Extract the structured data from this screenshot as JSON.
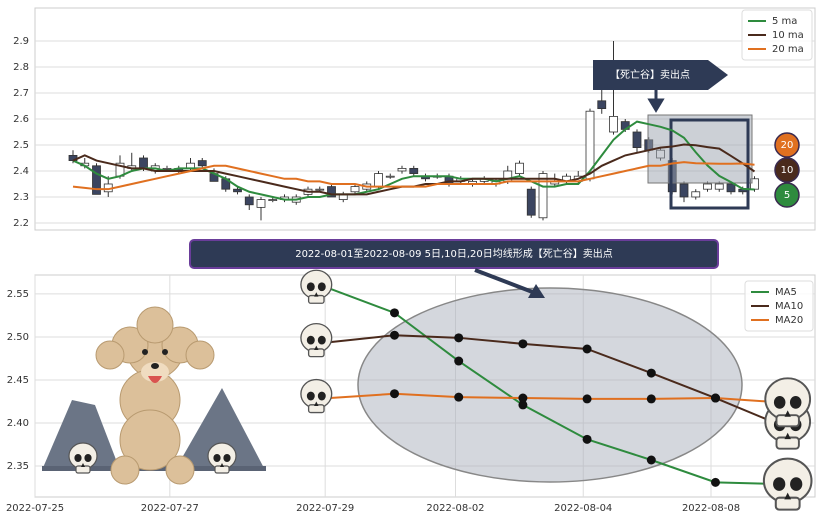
{
  "chart_data": [
    {
      "type": "candlestick",
      "ohlc": [
        [
          2.46,
          2.48,
          2.43,
          2.44
        ],
        [
          2.42,
          2.45,
          2.41,
          2.43
        ],
        [
          2.42,
          2.43,
          2.31,
          2.31
        ],
        [
          2.32,
          2.38,
          2.3,
          2.35
        ],
        [
          2.38,
          2.46,
          2.37,
          2.43
        ],
        [
          2.41,
          2.47,
          2.4,
          2.42
        ],
        [
          2.45,
          2.46,
          2.4,
          2.41
        ],
        [
          2.4,
          2.43,
          2.39,
          2.42
        ],
        [
          2.41,
          2.42,
          2.4,
          2.41
        ],
        [
          2.41,
          2.42,
          2.39,
          2.4
        ],
        [
          2.41,
          2.45,
          2.4,
          2.43
        ],
        [
          2.44,
          2.45,
          2.41,
          2.42
        ],
        [
          2.39,
          2.41,
          2.36,
          2.36
        ],
        [
          2.37,
          2.38,
          2.32,
          2.33
        ],
        [
          2.33,
          2.34,
          2.31,
          2.32
        ],
        [
          2.3,
          2.31,
          2.25,
          2.27
        ],
        [
          2.26,
          2.3,
          2.21,
          2.29
        ],
        [
          2.29,
          2.3,
          2.28,
          2.29
        ],
        [
          2.29,
          2.31,
          2.28,
          2.3
        ],
        [
          2.28,
          2.31,
          2.27,
          2.3
        ],
        [
          2.31,
          2.34,
          2.3,
          2.33
        ],
        [
          2.33,
          2.34,
          2.32,
          2.33
        ],
        [
          2.34,
          2.35,
          2.3,
          2.3
        ],
        [
          2.29,
          2.32,
          2.28,
          2.31
        ],
        [
          2.32,
          2.35,
          2.31,
          2.34
        ],
        [
          2.33,
          2.36,
          2.32,
          2.35
        ],
        [
          2.34,
          2.4,
          2.33,
          2.39
        ],
        [
          2.38,
          2.39,
          2.37,
          2.38
        ],
        [
          2.4,
          2.42,
          2.39,
          2.41
        ],
        [
          2.41,
          2.42,
          2.38,
          2.39
        ],
        [
          2.38,
          2.39,
          2.36,
          2.37
        ],
        [
          2.38,
          2.39,
          2.37,
          2.38
        ],
        [
          2.38,
          2.39,
          2.34,
          2.35
        ],
        [
          2.36,
          2.38,
          2.35,
          2.37
        ],
        [
          2.35,
          2.37,
          2.34,
          2.36
        ],
        [
          2.36,
          2.38,
          2.35,
          2.37
        ],
        [
          2.35,
          2.37,
          2.34,
          2.36
        ],
        [
          2.36,
          2.42,
          2.35,
          2.4
        ],
        [
          2.39,
          2.44,
          2.38,
          2.43
        ],
        [
          2.33,
          2.34,
          2.22,
          2.23
        ],
        [
          2.22,
          2.4,
          2.21,
          2.39
        ],
        [
          2.35,
          2.39,
          2.34,
          2.36
        ],
        [
          2.36,
          2.39,
          2.35,
          2.38
        ],
        [
          2.36,
          2.4,
          2.35,
          2.38
        ],
        [
          2.37,
          2.64,
          2.36,
          2.63
        ],
        [
          2.67,
          2.82,
          2.62,
          2.64
        ],
        [
          2.55,
          2.9,
          2.54,
          2.61
        ],
        [
          2.59,
          2.6,
          2.55,
          2.56
        ],
        [
          2.55,
          2.56,
          2.47,
          2.49
        ],
        [
          2.52,
          2.53,
          2.47,
          2.48
        ],
        [
          2.45,
          2.49,
          2.44,
          2.48
        ],
        [
          2.44,
          2.45,
          2.31,
          2.32
        ],
        [
          2.35,
          2.36,
          2.28,
          2.3
        ],
        [
          2.3,
          2.33,
          2.29,
          2.32
        ],
        [
          2.33,
          2.36,
          2.32,
          2.35
        ],
        [
          2.33,
          2.36,
          2.32,
          2.35
        ],
        [
          2.35,
          2.36,
          2.31,
          2.32
        ],
        [
          2.33,
          2.34,
          2.31,
          2.32
        ],
        [
          2.33,
          2.38,
          2.32,
          2.37
        ]
      ],
      "up_color": "#ffffff",
      "down_color": "#3b4560",
      "series": [
        {
          "name": "5 ma",
          "color": "#2e8b3e",
          "values": [
            2.44,
            2.42,
            2.39,
            2.37,
            2.38,
            2.4,
            2.41,
            2.41,
            2.4,
            2.41,
            2.41,
            2.41,
            2.39,
            2.37,
            2.34,
            2.32,
            2.31,
            2.3,
            2.29,
            2.29,
            2.3,
            2.3,
            2.31,
            2.31,
            2.31,
            2.32,
            2.33,
            2.35,
            2.37,
            2.38,
            2.38,
            2.38,
            2.38,
            2.37,
            2.37,
            2.37,
            2.36,
            2.37,
            2.38,
            2.36,
            2.34,
            2.34,
            2.35,
            2.35,
            2.4,
            2.46,
            2.52,
            2.56,
            2.59,
            2.58,
            2.57,
            2.556,
            2.528,
            2.472,
            2.421,
            2.381,
            2.357,
            2.331,
            2.329
          ]
        },
        {
          "name": "10 ma",
          "color": "#4a2a1c",
          "values": [
            2.44,
            2.46,
            2.44,
            2.43,
            2.42,
            2.41,
            2.41,
            2.4,
            2.4,
            2.4,
            2.4,
            2.4,
            2.4,
            2.39,
            2.38,
            2.37,
            2.36,
            2.35,
            2.34,
            2.33,
            2.32,
            2.32,
            2.31,
            2.31,
            2.31,
            2.31,
            2.32,
            2.33,
            2.34,
            2.34,
            2.35,
            2.35,
            2.36,
            2.36,
            2.37,
            2.37,
            2.37,
            2.37,
            2.37,
            2.37,
            2.37,
            2.37,
            2.36,
            2.37,
            2.39,
            2.42,
            2.44,
            2.46,
            2.47,
            2.48,
            2.49,
            2.494,
            2.502,
            2.499,
            2.492,
            2.486,
            2.458,
            2.429,
            2.398
          ]
        },
        {
          "name": "20 ma",
          "color": "#e07020",
          "values": [
            2.34,
            2.335,
            2.33,
            2.33,
            2.34,
            2.35,
            2.36,
            2.37,
            2.38,
            2.39,
            2.4,
            2.41,
            2.42,
            2.42,
            2.41,
            2.4,
            2.39,
            2.38,
            2.37,
            2.37,
            2.36,
            2.36,
            2.35,
            2.35,
            2.35,
            2.34,
            2.34,
            2.34,
            2.34,
            2.34,
            2.34,
            2.35,
            2.35,
            2.35,
            2.35,
            2.35,
            2.35,
            2.36,
            2.36,
            2.36,
            2.36,
            2.36,
            2.36,
            2.36,
            2.37,
            2.38,
            2.39,
            2.4,
            2.41,
            2.42,
            2.42,
            2.429,
            2.434,
            2.43,
            2.429,
            2.428,
            2.428,
            2.429,
            2.424
          ]
        }
      ],
      "ylim": [
        2.173,
        3.027
      ],
      "yticks": [
        2.2,
        2.3,
        2.4,
        2.5,
        2.6,
        2.7,
        2.8,
        2.9
      ],
      "grid": true,
      "legend": "upper right",
      "annotation": "【死亡谷】卖出点",
      "badges": [
        "20",
        "10",
        "5"
      ]
    },
    {
      "type": "line",
      "x": [
        0,
        1,
        2,
        3,
        4,
        5,
        6,
        7
      ],
      "series": [
        {
          "name": "MA5",
          "color": "#2e8b3e",
          "values": [
            2.556,
            2.528,
            2.472,
            2.421,
            2.381,
            2.357,
            2.331,
            2.329
          ]
        },
        {
          "name": "MA10",
          "color": "#4a2a1c",
          "values": [
            2.494,
            2.502,
            2.499,
            2.492,
            2.486,
            2.458,
            2.429,
            2.398
          ]
        },
        {
          "name": "MA20",
          "color": "#e07020",
          "values": [
            2.429,
            2.434,
            2.43,
            2.429,
            2.428,
            2.428,
            2.429,
            2.424
          ]
        }
      ],
      "xlim": [
        -4.6,
        7.55
      ],
      "xticks": [
        {
          "value": -4.6,
          "label": "2022-07-25"
        },
        {
          "value": -2.5,
          "label": "2022-07-27"
        },
        {
          "value": -0.08,
          "label": "2022-07-29"
        },
        {
          "value": 1.95,
          "label": "2022-08-02"
        },
        {
          "value": 3.94,
          "label": "2022-08-04"
        },
        {
          "value": 5.93,
          "label": "2022-08-08"
        }
      ],
      "ylim": [
        2.314,
        2.572
      ],
      "yticks": [
        2.35,
        {
          "value": 2.4,
          "label": "2.40"
        },
        2.45,
        {
          "value": 2.5,
          "label": "2.50"
        },
        2.55
      ],
      "grid": true,
      "legend": "upper right",
      "annotation": "2022-08-01至2022-08-09 5日,10日,20日均线形成【死亡谷】卖出点"
    }
  ]
}
